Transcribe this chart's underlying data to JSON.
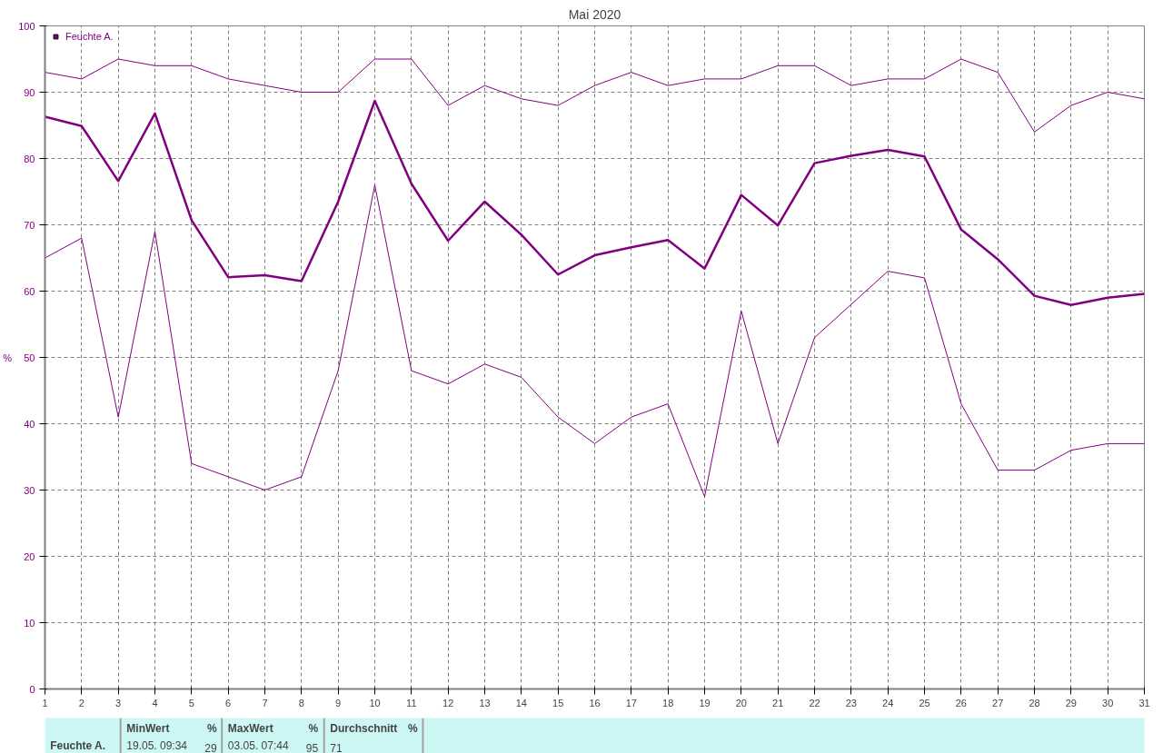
{
  "chart_data": {
    "type": "line",
    "title": "Mai 2020",
    "ylabel": "%",
    "x": [
      1,
      2,
      3,
      4,
      5,
      6,
      7,
      8,
      9,
      10,
      11,
      12,
      13,
      14,
      15,
      16,
      17,
      18,
      19,
      20,
      21,
      22,
      23,
      24,
      25,
      26,
      27,
      28,
      29,
      30,
      31
    ],
    "series": [
      {
        "color": "#800080",
        "values": [
          93,
          92,
          95,
          94,
          94,
          92,
          91,
          90,
          90,
          95,
          95,
          88,
          91,
          89,
          88,
          91,
          93,
          91,
          92,
          92,
          94,
          94,
          91,
          92,
          92,
          95,
          93,
          84,
          88,
          90,
          89
        ]
      },
      {
        "name": "Feuchte A.",
        "color": "#800080",
        "values": [
          86.3,
          84.9,
          76.6,
          86.8,
          70.7,
          62.1,
          62.4,
          61.5,
          73.5,
          88.7,
          76.2,
          67.6,
          73.5,
          68.5,
          62.5,
          65.4,
          66.6,
          67.7,
          63.4,
          74.5,
          69.9,
          79.3,
          80.4,
          81.3,
          80.3,
          69.3,
          64.8,
          59.3,
          57.9,
          59.0,
          59.6
        ]
      },
      {
        "color": "#800080",
        "values": [
          65,
          68,
          41,
          69,
          34,
          32,
          30,
          32,
          48,
          76,
          48,
          46,
          49,
          47,
          41,
          37,
          41,
          43,
          29,
          57,
          37,
          53,
          58,
          63,
          62,
          43,
          33,
          33,
          36,
          37,
          37
        ]
      }
    ],
    "xlim": [
      1,
      31
    ],
    "xticks": [
      1,
      2,
      3,
      4,
      5,
      6,
      7,
      8,
      9,
      10,
      11,
      12,
      13,
      14,
      15,
      16,
      17,
      18,
      19,
      20,
      21,
      22,
      23,
      24,
      25,
      26,
      27,
      28,
      29,
      30,
      31
    ],
    "ylim": [
      0,
      100
    ],
    "yticks": [
      0,
      10,
      20,
      30,
      40,
      50,
      60,
      70,
      80,
      90,
      100
    ],
    "grid": true,
    "legend": "top left",
    "marker": "none",
    "line_style": "solid",
    "annotations": [
      "Feuchte A.",
      "MinWert",
      "%",
      "19.05.  09:34",
      "29",
      "MaxWert",
      "%",
      "03.05.  07:44",
      "95",
      "Durchschnitt",
      "%",
      "71"
    ]
  }
}
